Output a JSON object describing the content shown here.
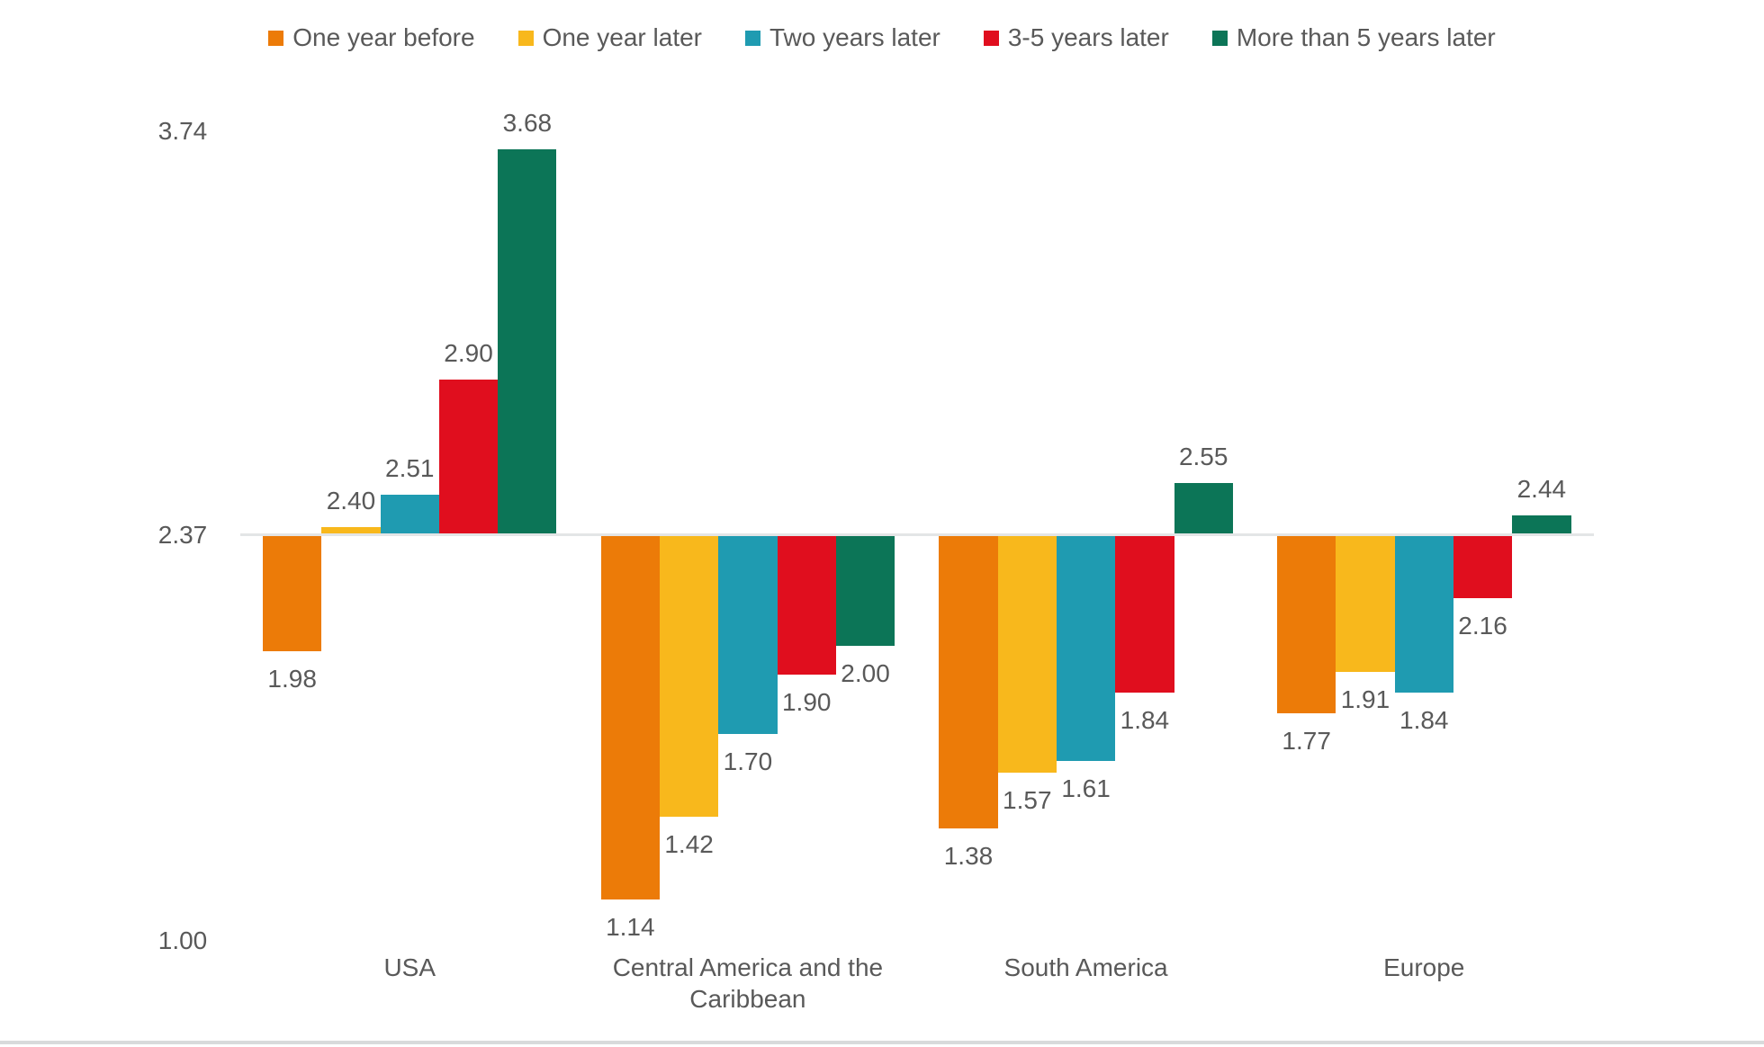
{
  "chart_data": {
    "type": "bar",
    "title": "",
    "categories": [
      "USA",
      "Central America and the Caribbean",
      "South America",
      "Europe"
    ],
    "series": [
      {
        "name": "One year before",
        "color": "#EC7B08",
        "values": [
          1.98,
          1.14,
          1.38,
          1.77
        ]
      },
      {
        "name": "One year later",
        "color": "#F8B81C",
        "values": [
          2.4,
          1.42,
          1.57,
          1.91
        ]
      },
      {
        "name": "Two years later",
        "color": "#1F9BB1",
        "values": [
          2.51,
          1.7,
          1.61,
          1.84
        ]
      },
      {
        "name": "3-5 years later",
        "color": "#E00E1E",
        "values": [
          2.9,
          1.9,
          1.84,
          2.16
        ]
      },
      {
        "name": "More than 5 years later",
        "color": "#0C7557",
        "values": [
          3.68,
          2.0,
          2.55,
          2.44
        ]
      }
    ],
    "baseline": 2.37,
    "ylim": [
      1.0,
      3.74
    ],
    "y_axis_tick_labels": [
      "3.74",
      "2.37",
      "1.00"
    ],
    "value_label_decimals": 2,
    "legend_position": "top",
    "grid": false
  },
  "styles": {
    "text_color": "#595959",
    "baseline_color": "#E3E5E6",
    "bottom_rule_color": "#D8DADB",
    "background": "#FFFFFF"
  }
}
